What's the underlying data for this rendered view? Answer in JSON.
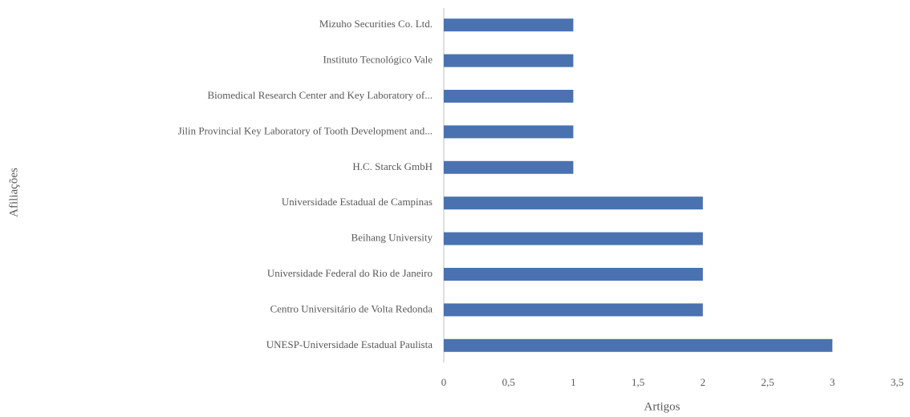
{
  "chart_data": {
    "type": "barh",
    "categories": [
      "Mizuho Securities Co. Ltd.",
      "Instituto Tecnológico Vale",
      "Biomedical Research Center and Key Laboratory of...",
      "Jilin Provincial Key Laboratory of Tooth Development and...",
      "H.C. Starck GmbH",
      "Universidade Estadual de Campinas",
      "Beihang University",
      "Universidade Federal do Rio de Janeiro",
      "Centro Universitário de Volta Redonda",
      "UNESP-Universidade Estadual Paulista"
    ],
    "values": [
      1,
      1,
      1,
      1,
      1,
      2,
      2,
      2,
      2,
      3
    ],
    "color": "#4a72b0",
    "xlabel": "Artigos",
    "ylabel": "Afiliações",
    "xlim": [
      0,
      3.5
    ],
    "xticks": [
      0,
      {
        "value": 0.5,
        "label": "0,5"
      },
      1,
      {
        "value": 1.5,
        "label": "1,5"
      },
      2,
      {
        "value": 2.5,
        "label": "2,5"
      },
      3,
      {
        "value": 3.5,
        "label": "3,5"
      }
    ],
    "grid": false
  }
}
